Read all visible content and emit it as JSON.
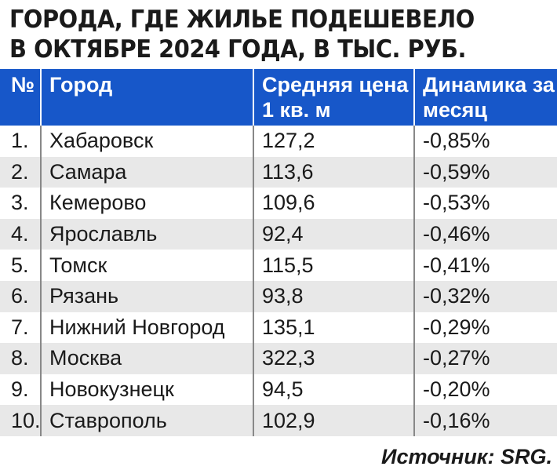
{
  "title": [
    "ГОРОДА, ГДЕ ЖИЛЬЕ ПОДЕШЕВЕЛО",
    "В ОКТЯБРЕ 2024 ГОДА, В ТЫС. РУБ."
  ],
  "table": {
    "header": [
      "№",
      "Город",
      "Средняя цена 1 кв. м",
      "Динамика за месяц"
    ],
    "rows": [
      [
        "1.",
        "Хабаровск",
        "127,2",
        "-0,85%"
      ],
      [
        "2.",
        "Самара",
        "113,6",
        "-0,59%"
      ],
      [
        "3.",
        "Кемерово",
        "109,6",
        "-0,53%"
      ],
      [
        "4.",
        "Ярославль",
        "92,4",
        "-0,46%"
      ],
      [
        "5.",
        "Томск",
        "115,5",
        "-0,41%"
      ],
      [
        "6.",
        "Рязань",
        "93,8",
        "-0,32%"
      ],
      [
        "7.",
        "Нижний Новгород",
        "135,1",
        "-0,29%"
      ],
      [
        "8.",
        "Москва",
        "322,3",
        "-0,27%"
      ],
      [
        "9.",
        "Новокузнецк",
        "94,5",
        "-0,20%"
      ],
      [
        "10.",
        "Ставрополь",
        "102,9",
        "-0,16%"
      ]
    ]
  },
  "source": "Источник: SRG."
}
